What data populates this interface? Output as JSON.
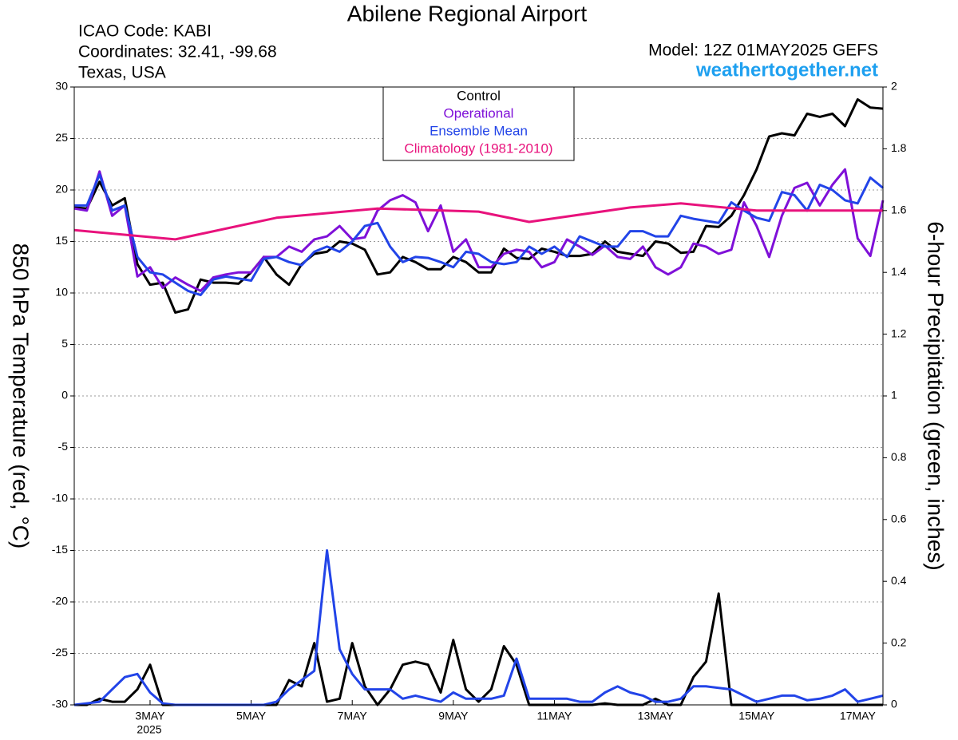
{
  "chart_data": {
    "type": "line",
    "title": "Abilene Regional Airport",
    "annotations": {
      "icao": "ICAO Code: KABI",
      "coordinates": "Coordinates: 32.41, -99.68",
      "location": "Texas, USA",
      "model": "Model: 12Z 01MAY2025 GEFS",
      "site": "weathertogether.net",
      "year": "2025"
    },
    "ylabel": "850 hPa Temperature (red, °C)",
    "y2label": "6-hour Precipitation (green, inches)",
    "x": [
      1.5,
      1.75,
      2,
      2.25,
      2.5,
      2.75,
      3,
      3.25,
      3.5,
      3.75,
      4,
      4.25,
      4.5,
      4.75,
      5,
      5.25,
      5.5,
      5.75,
      6,
      6.25,
      6.5,
      6.75,
      7,
      7.25,
      7.5,
      7.75,
      8,
      8.25,
      8.5,
      8.75,
      9,
      9.25,
      9.5,
      9.75,
      10,
      10.25,
      10.5,
      10.75,
      11,
      11.25,
      11.5,
      11.75,
      12,
      12.25,
      12.5,
      12.75,
      13,
      13.25,
      13.5,
      13.75,
      14,
      14.25,
      14.5,
      14.75,
      15,
      15.25,
      15.5,
      15.75,
      16,
      16.25,
      16.5,
      16.75,
      17,
      17.25,
      17.5
    ],
    "xlim": [
      1.5,
      17.5
    ],
    "xticks": [
      {
        "value": 3,
        "label": "3MAY"
      },
      {
        "value": 5,
        "label": "5MAY"
      },
      {
        "value": 7,
        "label": "7MAY"
      },
      {
        "value": 9,
        "label": "9MAY"
      },
      {
        "value": 11,
        "label": "11MAY"
      },
      {
        "value": 13,
        "label": "13MAY"
      },
      {
        "value": 15,
        "label": "15MAY"
      },
      {
        "value": 17,
        "label": "17MAY"
      }
    ],
    "ylim": [
      -30,
      30
    ],
    "yticks": [
      -30,
      -25,
      -20,
      -15,
      -10,
      -5,
      0,
      5,
      10,
      15,
      20,
      25,
      30
    ],
    "y2lim": [
      0,
      2
    ],
    "y2ticks": [
      0,
      0.2,
      0.4,
      0.6,
      0.8,
      1,
      1.2,
      1.4,
      1.6,
      1.8,
      2
    ],
    "grid": true,
    "series": [
      {
        "name": "Control",
        "color": "#000000",
        "values": [
          18.3,
          18.2,
          20.8,
          18.5,
          19.2,
          12.8,
          10.8,
          11.0,
          8.1,
          8.4,
          11.3,
          11.0,
          11.0,
          10.9,
          12.0,
          13.5,
          11.8,
          10.8,
          12.8,
          13.8,
          14.0,
          15.0,
          14.8,
          14.2,
          11.8,
          12.0,
          13.5,
          13.0,
          12.3,
          12.3,
          13.5,
          13.0,
          12.0,
          12.0,
          14.3,
          13.4,
          13.3,
          14.3,
          14.0,
          13.6,
          13.6,
          13.8,
          15.0,
          14.0,
          13.8,
          13.6,
          15.0,
          14.8,
          13.9,
          14.0,
          16.5,
          16.4,
          17.5,
          19.5,
          22.0,
          25.2,
          25.5,
          25.3,
          27.4,
          27.1,
          27.4,
          26.2,
          28.8,
          28.0,
          27.9
        ]
      },
      {
        "name": "Operational",
        "color": "#7f10d8",
        "values": [
          18.2,
          18.0,
          21.8,
          17.5,
          18.5,
          11.6,
          12.5,
          10.5,
          11.5,
          10.8,
          10.2,
          11.5,
          11.8,
          12.0,
          12.0,
          13.5,
          13.5,
          14.5,
          14.0,
          15.2,
          15.5,
          16.5,
          15.2,
          15.4,
          18.0,
          19.0,
          19.5,
          18.8,
          16.0,
          18.5,
          14.0,
          15.2,
          12.5,
          12.5,
          13.8,
          14.2,
          14.0,
          12.5,
          13.0,
          15.2,
          14.5,
          13.7,
          14.6,
          13.5,
          13.3,
          14.5,
          12.5,
          11.8,
          12.5,
          14.8,
          14.5,
          13.8,
          14.2,
          18.8,
          16.5,
          13.5,
          17.5,
          20.2,
          20.7,
          18.5,
          20.5,
          22.0,
          15.3,
          13.6,
          19.0
        ]
      },
      {
        "name": "Ensemble Mean",
        "color": "#2244e8",
        "values": [
          18.5,
          18.5,
          21.5,
          18.0,
          18.5,
          13.5,
          12.0,
          11.8,
          11.0,
          10.2,
          9.8,
          11.3,
          11.6,
          11.4,
          11.2,
          13.3,
          13.5,
          13.0,
          12.7,
          14.0,
          14.5,
          14.0,
          15.0,
          16.5,
          16.8,
          14.5,
          13.0,
          13.5,
          13.4,
          13.0,
          12.5,
          14.0,
          13.8,
          13.0,
          12.8,
          13.0,
          14.5,
          13.8,
          14.5,
          13.5,
          15.5,
          15.0,
          14.5,
          14.5,
          16.0,
          16.0,
          15.5,
          15.5,
          17.5,
          17.2,
          17.0,
          16.8,
          18.8,
          18.0,
          17.3,
          17.0,
          19.8,
          19.5,
          18.0,
          20.5,
          20.0,
          19.0,
          18.7,
          21.2,
          20.2
        ]
      },
      {
        "name": "Climatology (1981-2010)",
        "color": "#e8127c",
        "x": [
          1.5,
          3.5,
          5.5,
          7.5,
          9.5,
          10.5,
          12.5,
          13.5,
          15.0,
          17.5
        ],
        "values": [
          16.1,
          15.2,
          17.3,
          18.2,
          17.9,
          16.9,
          18.3,
          18.7,
          18.0,
          18.0
        ]
      },
      {
        "color": "#000000",
        "axis": "y2",
        "values": [
          0,
          0,
          0.02,
          0.01,
          0.01,
          0.05,
          0.13,
          0,
          0,
          0,
          0,
          0,
          0,
          0,
          0,
          0,
          0,
          0.08,
          0.06,
          0.2,
          0.01,
          0.02,
          0.2,
          0.06,
          0,
          0.05,
          0.13,
          0.14,
          0.13,
          0.04,
          0.21,
          0.05,
          0.01,
          0.05,
          0.19,
          0.13,
          0,
          0,
          0,
          0,
          0,
          0,
          0.005,
          0,
          0,
          0,
          0.02,
          0,
          0,
          0.09,
          0.14,
          0.36,
          0,
          0,
          0,
          0,
          0,
          0,
          0,
          0,
          0,
          0,
          0,
          0,
          0
        ]
      },
      {
        "color": "#2244e8",
        "axis": "y2",
        "values": [
          0,
          0.005,
          0.01,
          0.05,
          0.09,
          0.1,
          0.04,
          0.005,
          0,
          0,
          0,
          0,
          0,
          0,
          0,
          0,
          0.01,
          0.05,
          0.08,
          0.11,
          0.5,
          0.18,
          0.1,
          0.05,
          0.05,
          0.05,
          0.02,
          0.03,
          0.02,
          0.01,
          0.04,
          0.02,
          0.02,
          0.02,
          0.03,
          0.15,
          0.02,
          0.02,
          0.02,
          0.02,
          0.01,
          0.01,
          0.04,
          0.06,
          0.04,
          0.03,
          0.01,
          0.01,
          0.02,
          0.06,
          0.06,
          0.055,
          0.05,
          0.03,
          0.01,
          0.02,
          0.03,
          0.03,
          0.015,
          0.02,
          0.03,
          0.05,
          0.01,
          0.02,
          0.03
        ]
      }
    ]
  }
}
